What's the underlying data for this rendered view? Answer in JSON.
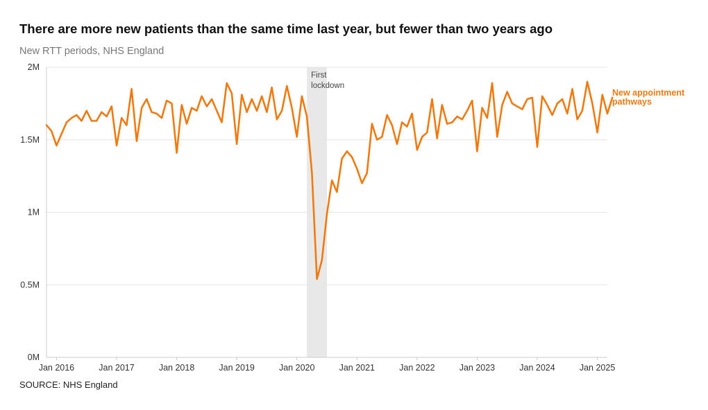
{
  "title": "There are more new patients than the same time last year, but fewer than two years ago",
  "subtitle": "New RTT periods, NHS England",
  "source": "SOURCE: NHS England",
  "colors": {
    "line": "#f07a10",
    "shade": "#e8e8e8",
    "grid": "#e6e6e6",
    "axis": "#cccccc"
  },
  "chart_data": {
    "type": "line",
    "title": "There are more new patients than the same time last year, but fewer than two years ago",
    "subtitle": "New RTT periods, NHS England",
    "xlabel": "",
    "ylabel": "",
    "x_start": "2015-11",
    "x_end": "2025-03",
    "ylim": [
      0,
      2000000
    ],
    "y_ticks": [
      {
        "value": 0,
        "label": "0M"
      },
      {
        "value": 500000,
        "label": "0.5M"
      },
      {
        "value": 1000000,
        "label": "1M"
      },
      {
        "value": 1500000,
        "label": "1.5M"
      },
      {
        "value": 2000000,
        "label": "2M"
      }
    ],
    "x_ticks": [
      {
        "value": "2016-01",
        "label": "Jan 2016"
      },
      {
        "value": "2017-01",
        "label": "Jan 2017"
      },
      {
        "value": "2018-01",
        "label": "Jan 2018"
      },
      {
        "value": "2019-01",
        "label": "Jan 2019"
      },
      {
        "value": "2020-01",
        "label": "Jan 2020"
      },
      {
        "value": "2021-01",
        "label": "Jan 2021"
      },
      {
        "value": "2022-01",
        "label": "Jan 2022"
      },
      {
        "value": "2023-01",
        "label": "Jan 2023"
      },
      {
        "value": "2024-01",
        "label": "Jan 2024"
      },
      {
        "value": "2025-01",
        "label": "Jan 2025"
      }
    ],
    "shaded_region": {
      "from": "2020-03",
      "to": "2020-07",
      "label_lines": [
        "First",
        "lockdown"
      ]
    },
    "series": [
      {
        "name": "New appointment pathways",
        "label_lines": [
          "New appointment",
          "pathways"
        ],
        "start": "2015-11",
        "values": [
          1600000,
          1560000,
          1460000,
          1540000,
          1620000,
          1650000,
          1670000,
          1630000,
          1700000,
          1630000,
          1630000,
          1690000,
          1660000,
          1730000,
          1460000,
          1650000,
          1600000,
          1850000,
          1490000,
          1720000,
          1780000,
          1690000,
          1680000,
          1650000,
          1770000,
          1750000,
          1410000,
          1740000,
          1610000,
          1720000,
          1700000,
          1800000,
          1730000,
          1780000,
          1700000,
          1620000,
          1890000,
          1820000,
          1470000,
          1810000,
          1690000,
          1780000,
          1700000,
          1800000,
          1690000,
          1860000,
          1640000,
          1700000,
          1870000,
          1720000,
          1520000,
          1800000,
          1660000,
          1270000,
          540000,
          670000,
          990000,
          1220000,
          1140000,
          1370000,
          1420000,
          1380000,
          1300000,
          1200000,
          1270000,
          1610000,
          1500000,
          1520000,
          1670000,
          1600000,
          1470000,
          1620000,
          1590000,
          1680000,
          1430000,
          1520000,
          1550000,
          1780000,
          1510000,
          1740000,
          1610000,
          1620000,
          1660000,
          1640000,
          1700000,
          1770000,
          1420000,
          1720000,
          1650000,
          1890000,
          1520000,
          1740000,
          1830000,
          1750000,
          1730000,
          1710000,
          1780000,
          1790000,
          1450000,
          1800000,
          1740000,
          1670000,
          1750000,
          1780000,
          1680000,
          1850000,
          1640000,
          1700000,
          1900000,
          1750000,
          1550000,
          1810000,
          1680000,
          1790000
        ]
      }
    ]
  }
}
